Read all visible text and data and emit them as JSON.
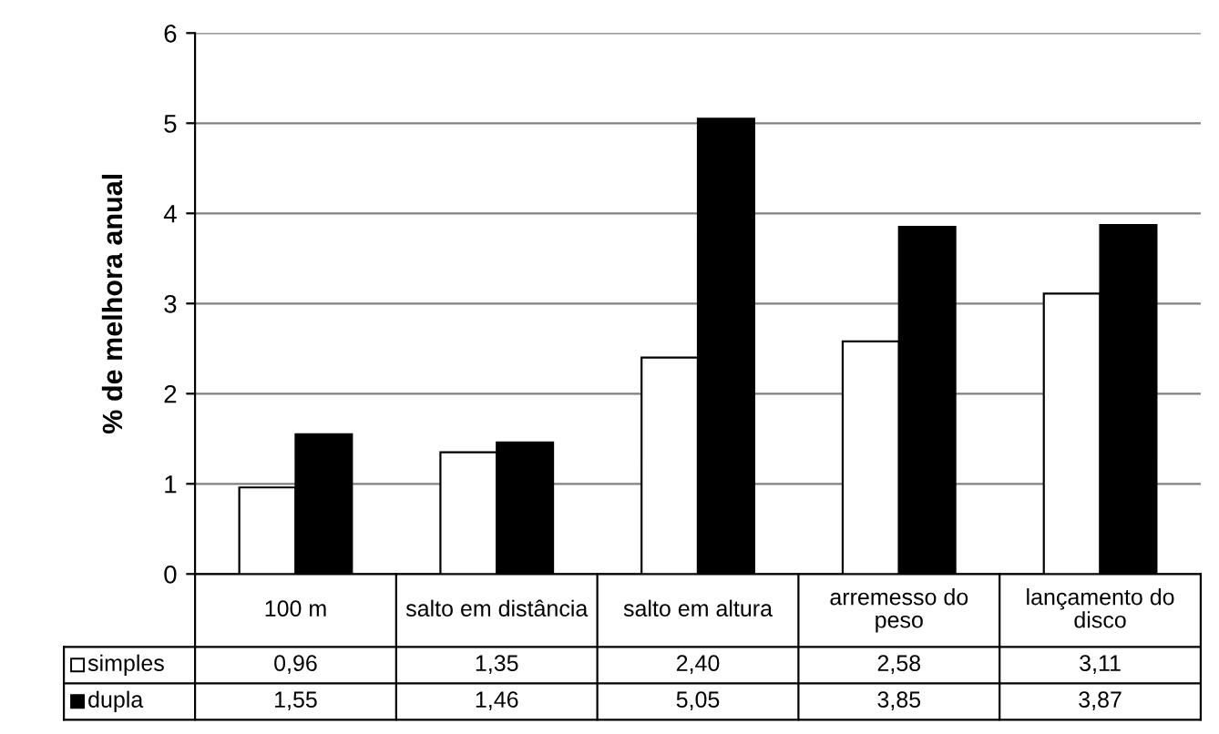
{
  "chart_data": {
    "type": "bar",
    "ylabel": "% de melhora anual",
    "categories": [
      "100 m",
      "salto em distância",
      "salto em altura",
      "arremesso do peso",
      "lançamento do disco"
    ],
    "series": [
      {
        "name": "simples",
        "color": "#ffffff",
        "values": [
          0.96,
          1.35,
          2.4,
          2.58,
          3.11
        ],
        "value_labels": [
          "0,96",
          "1,35",
          "2,40",
          "2,58",
          "3,11"
        ]
      },
      {
        "name": "dupla",
        "color": "#000000",
        "values": [
          1.55,
          1.46,
          5.05,
          3.85,
          3.87
        ],
        "value_labels": [
          "1,55",
          "1,46",
          "5,05",
          "3,85",
          "3,87"
        ]
      }
    ],
    "ylim": [
      0,
      6
    ],
    "yticks": [
      0,
      1,
      2,
      3,
      4,
      5,
      6
    ],
    "grid": "y",
    "legend": "bottom left"
  }
}
